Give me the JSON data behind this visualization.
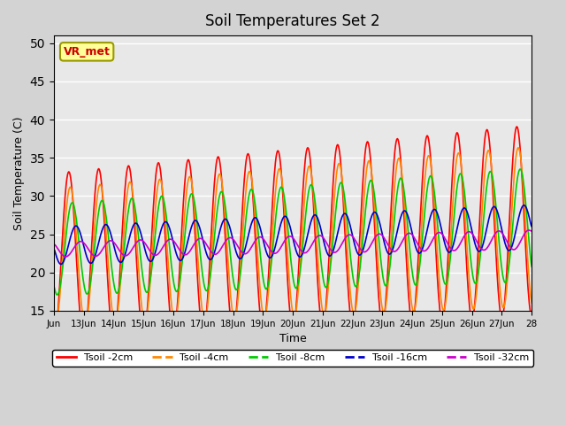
{
  "title": "Soil Temperatures Set 2",
  "xlabel": "Time",
  "ylabel": "Soil Temperature (C)",
  "ylim": [
    15,
    51
  ],
  "yticks": [
    15,
    20,
    25,
    30,
    35,
    40,
    45,
    50
  ],
  "plot_bg_color": "#e8e8e8",
  "fig_bg_color": "#d3d3d3",
  "line_colors": {
    "2cm": "#ff0000",
    "4cm": "#ff8800",
    "8cm": "#00cc00",
    "16cm": "#0000cc",
    "32cm": "#cc00cc"
  },
  "legend_labels": [
    "Tsoil -2cm",
    "Tsoil -4cm",
    "Tsoil -8cm",
    "Tsoil -16cm",
    "Tsoil -32cm"
  ],
  "annotation_text": "VR_met",
  "n_days": 16,
  "x_tick_positions": [
    0,
    1,
    2,
    3,
    4,
    5,
    6,
    7,
    8,
    9,
    10,
    11,
    12,
    13,
    14,
    15,
    16
  ],
  "x_tick_labels": [
    "Jun",
    "13Jun",
    "14Jun",
    "15Jun",
    "16Jun",
    "17Jun",
    "18Jun",
    "19Jun",
    "20Jun",
    "21Jun",
    "22Jun",
    "23Jun",
    "24Jun",
    "25Jun",
    "26Jun",
    "27Jun",
    "28"
  ],
  "samples_per_day": 48
}
